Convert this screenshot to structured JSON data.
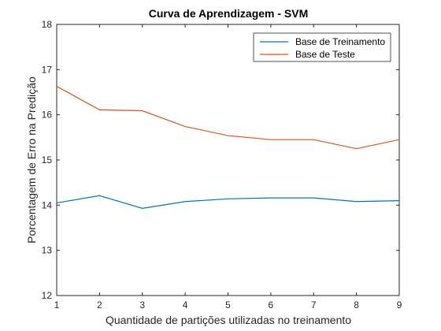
{
  "chart_data": {
    "type": "line",
    "title": "Curva de Aprendizagem - SVM",
    "xlabel": "Quantidade de partições utilizadas no treinamento",
    "ylabel": "Porcentagem de Erro na Predição",
    "x": [
      1,
      2,
      3,
      4,
      5,
      6,
      7,
      8,
      9
    ],
    "xlim": [
      1,
      9
    ],
    "ylim": [
      12,
      18
    ],
    "xticks": [
      1,
      2,
      3,
      4,
      5,
      6,
      7,
      8,
      9
    ],
    "yticks": [
      12,
      13,
      14,
      15,
      16,
      17,
      18
    ],
    "grid": false,
    "legend_position": "top-right",
    "series": [
      {
        "name": "Base de Treinamento",
        "color": "#0072bd",
        "values": [
          14.05,
          14.21,
          13.93,
          14.08,
          14.14,
          14.16,
          14.16,
          14.08,
          14.1
        ]
      },
      {
        "name": "Base de Teste",
        "color": "#d95319",
        "values": [
          16.63,
          16.11,
          16.09,
          15.74,
          15.54,
          15.45,
          15.45,
          15.25,
          15.45
        ]
      }
    ]
  }
}
